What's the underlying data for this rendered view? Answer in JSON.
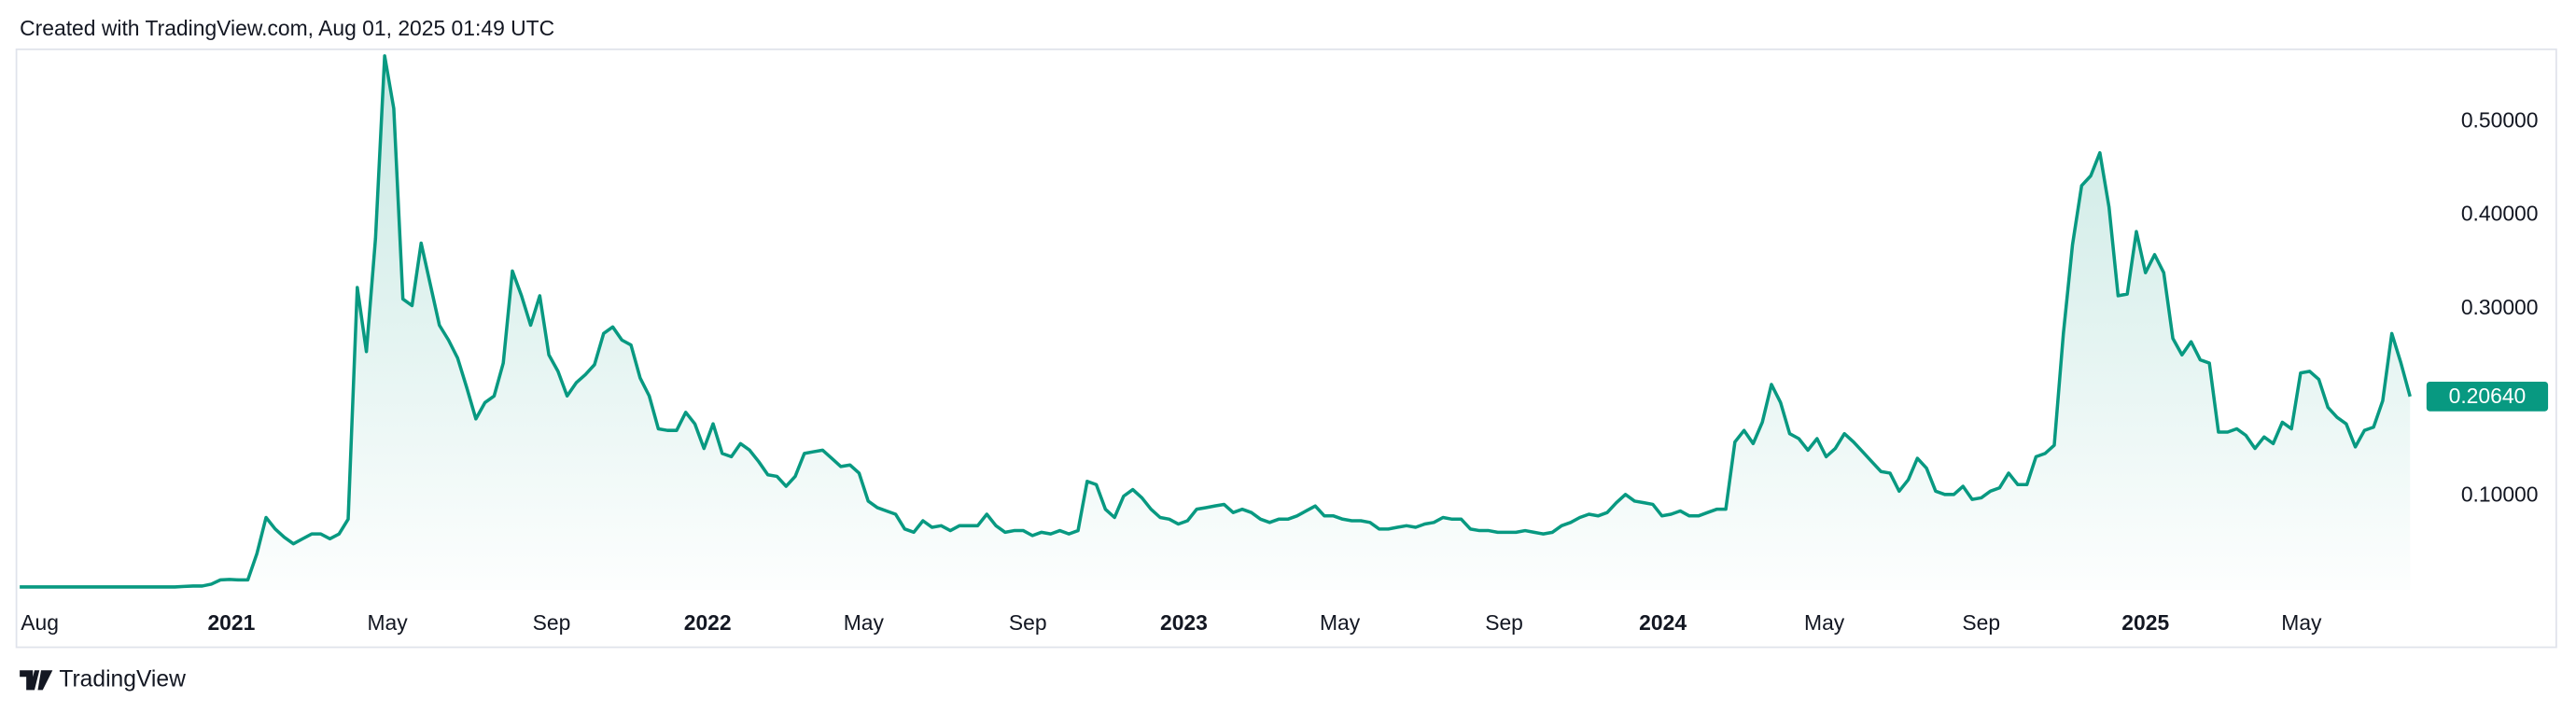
{
  "header": "Created with TradingView.com, Aug 01, 2025 01:49 UTC",
  "footer": "TradingView",
  "chart_data": {
    "type": "area",
    "grid": false,
    "xlim": [
      0,
      262
    ],
    "xticks": [
      {
        "value": 2.2,
        "label": "Aug"
      },
      {
        "value": 23.2,
        "label": "2021"
      },
      {
        "value": 40.3,
        "label": "May"
      },
      {
        "value": 58.3,
        "label": "Sep"
      },
      {
        "value": 75.4,
        "label": "2022"
      },
      {
        "value": 92.5,
        "label": "May"
      },
      {
        "value": 110.5,
        "label": "Sep"
      },
      {
        "value": 127.6,
        "label": "2023"
      },
      {
        "value": 144.7,
        "label": "May"
      },
      {
        "value": 162.7,
        "label": "Sep"
      },
      {
        "value": 180.1,
        "label": "2024"
      },
      {
        "value": 197.8,
        "label": "May"
      },
      {
        "value": 215,
        "label": "Sep"
      },
      {
        "value": 233,
        "label": "2025"
      },
      {
        "value": 250.1,
        "label": "May"
      }
    ],
    "ylim": [
      0,
      0.58
    ],
    "yticks": [
      {
        "value": 0.1,
        "label": "0.10000"
      },
      {
        "value": 0.3,
        "label": "0.30000"
      },
      {
        "value": 0.4,
        "label": "0.40000"
      },
      {
        "value": 0.5,
        "label": "0.50000"
      }
    ],
    "price_label": {
      "value": 0.2064,
      "label": "0.20640"
    },
    "series": [
      {
        "color": "#089981",
        "values": [
          0.003,
          0.003,
          0.003,
          0.003,
          0.003,
          0.003,
          0.003,
          0.003,
          0.003,
          0.003,
          0.003,
          0.003,
          0.003,
          0.003,
          0.003,
          0.003,
          0.003,
          0.003,
          0.0035,
          0.004,
          0.004,
          0.006,
          0.0105,
          0.011,
          0.0105,
          0.0105,
          0.0386,
          0.0772,
          0.0649,
          0.0561,
          0.0491,
          0.0544,
          0.0596,
          0.0596,
          0.0544,
          0.0596,
          0.0754,
          0.3228,
          0.2544,
          0.3754,
          0.5702,
          0.514,
          0.3105,
          0.3035,
          0.3702,
          0.3263,
          0.2825,
          0.2667,
          0.2474,
          0.2158,
          0.1825,
          0.2,
          0.207,
          0.2421,
          0.3404,
          0.314,
          0.2825,
          0.314,
          0.2509,
          0.2333,
          0.207,
          0.2211,
          0.2298,
          0.2404,
          0.2737,
          0.2807,
          0.2667,
          0.2614,
          0.2263,
          0.207,
          0.1719,
          0.1702,
          0.1702,
          0.1895,
          0.1772,
          0.1509,
          0.1772,
          0.1456,
          0.1421,
          0.1561,
          0.1491,
          0.1368,
          0.1228,
          0.1211,
          0.1105,
          0.1211,
          0.1456,
          0.1474,
          0.1491,
          0.1404,
          0.1316,
          0.1333,
          0.1246,
          0.0947,
          0.0877,
          0.0842,
          0.0807,
          0.0649,
          0.0614,
          0.0737,
          0.0667,
          0.0684,
          0.0632,
          0.0684,
          0.0684,
          0.0684,
          0.0807,
          0.0684,
          0.0614,
          0.0632,
          0.0632,
          0.0579,
          0.0614,
          0.0596,
          0.0632,
          0.0596,
          0.0632,
          0.1158,
          0.1123,
          0.086,
          0.0772,
          0.1,
          0.107,
          0.0982,
          0.086,
          0.0772,
          0.0754,
          0.0702,
          0.0737,
          0.086,
          0.0877,
          0.0895,
          0.0912,
          0.0825,
          0.086,
          0.0825,
          0.0754,
          0.0719,
          0.0754,
          0.0754,
          0.0789,
          0.0842,
          0.0895,
          0.0789,
          0.0789,
          0.0754,
          0.0737,
          0.0737,
          0.0719,
          0.0649,
          0.0649,
          0.0667,
          0.0684,
          0.0667,
          0.0702,
          0.0719,
          0.0772,
          0.0754,
          0.0754,
          0.0649,
          0.0632,
          0.0632,
          0.0614,
          0.0614,
          0.0614,
          0.0632,
          0.0614,
          0.0596,
          0.0614,
          0.0684,
          0.0719,
          0.0772,
          0.0807,
          0.0789,
          0.0825,
          0.093,
          0.1018,
          0.0947,
          0.093,
          0.0912,
          0.0789,
          0.0807,
          0.0842,
          0.0789,
          0.0789,
          0.0825,
          0.086,
          0.086,
          0.1579,
          0.1702,
          0.1561,
          0.1789,
          0.2193,
          0.2,
          0.1667,
          0.1614,
          0.1491,
          0.1614,
          0.1421,
          0.1509,
          0.1667,
          0.1579,
          0.1474,
          0.1368,
          0.1263,
          0.1246,
          0.1053,
          0.1175,
          0.1404,
          0.1298,
          0.1053,
          0.1018,
          0.1018,
          0.1105,
          0.0965,
          0.0982,
          0.1053,
          0.1088,
          0.1246,
          0.1123,
          0.1123,
          0.1421,
          0.1456,
          0.1544,
          0.2737,
          0.3684,
          0.4316,
          0.4421,
          0.4667,
          0.4088,
          0.314,
          0.3158,
          0.3825,
          0.3386,
          0.3579,
          0.3386,
          0.2684,
          0.2509,
          0.2649,
          0.2456,
          0.2421,
          0.1684,
          0.1684,
          0.1719,
          0.1649,
          0.1509,
          0.1632,
          0.1561,
          0.1789,
          0.1719,
          0.2316,
          0.2333,
          0.2246,
          0.1947,
          0.1842,
          0.1772,
          0.1526,
          0.1702,
          0.1737,
          0.2018,
          0.2737,
          0.2421,
          0.2064
        ]
      }
    ]
  }
}
